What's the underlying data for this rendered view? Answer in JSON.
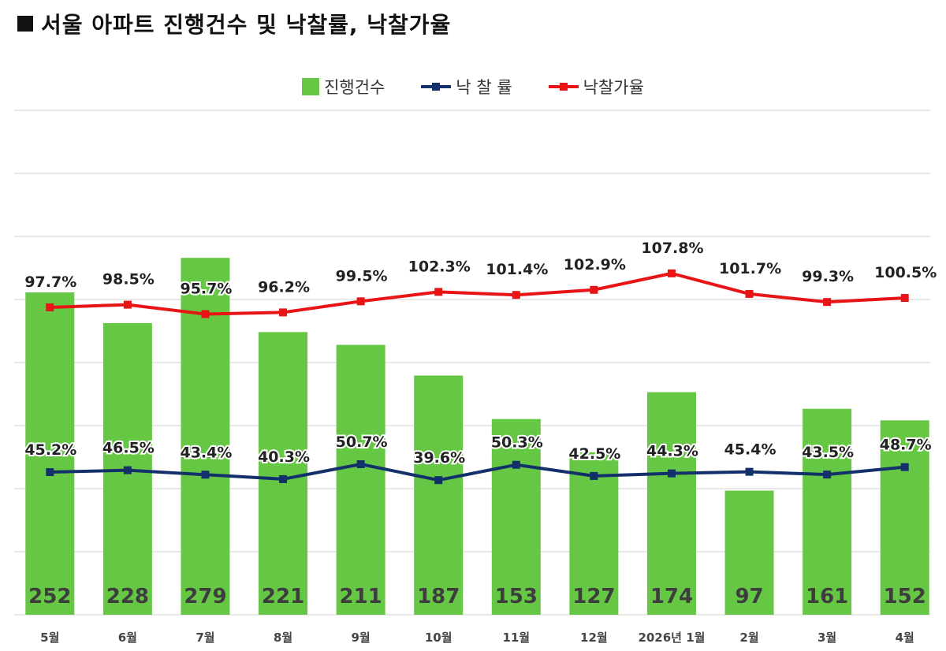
{
  "title": "서울 아파트 진행건수 및 낙찰률, 낙찰가율",
  "legend": {
    "bar_label": "진행건수",
    "line1_label": "낙 찰 률",
    "line2_label": "낙찰가율"
  },
  "colors": {
    "bar": "#66c744",
    "rate_line": "#13306b",
    "price_line": "#e81416",
    "grid": "#d9d9d9"
  },
  "chart_data": {
    "type": "bar",
    "title": "서울 아파트 진행건수 및 낙찰률, 낙찰가율",
    "categories": [
      "5월",
      "6월",
      "7월",
      "8월",
      "9월",
      "10월",
      "11월",
      "12월",
      "2026년 1월",
      "2월",
      "3월",
      "4월"
    ],
    "series": [
      {
        "name": "진행건수",
        "type": "bar",
        "values": [
          252,
          228,
          279,
          221,
          211,
          187,
          153,
          127,
          174,
          97,
          161,
          152
        ]
      },
      {
        "name": "낙 찰 률",
        "type": "line",
        "values": [
          45.2,
          46.5,
          43.4,
          40.3,
          50.7,
          39.6,
          50.3,
          42.5,
          44.3,
          45.4,
          43.5,
          48.7
        ]
      },
      {
        "name": "낙찰가율",
        "type": "line",
        "values": [
          97.7,
          98.5,
          95.7,
          96.2,
          99.5,
          102.3,
          101.4,
          102.9,
          107.8,
          101.7,
          99.3,
          100.5
        ]
      }
    ],
    "data_labels": {
      "counts": [
        "252",
        "228",
        "279",
        "221",
        "211",
        "187",
        "153",
        "127",
        "174",
        "97",
        "161",
        "152"
      ],
      "rate": [
        "45.2%",
        "46.5%",
        "43.4%",
        "40.3%",
        "50.7%",
        "39.6%",
        "50.3%",
        "42.5%",
        "44.3%",
        "45.4%",
        "43.5%",
        "48.7%"
      ],
      "price_rate": [
        "97.7%",
        "98.5%",
        "95.7%",
        "96.2%",
        "99.5%",
        "102.3%",
        "101.4%",
        "102.9%",
        "107.8%",
        "101.7%",
        "99.3%",
        "100.5%"
      ]
    },
    "grid": true,
    "legend_position": "top-center"
  }
}
